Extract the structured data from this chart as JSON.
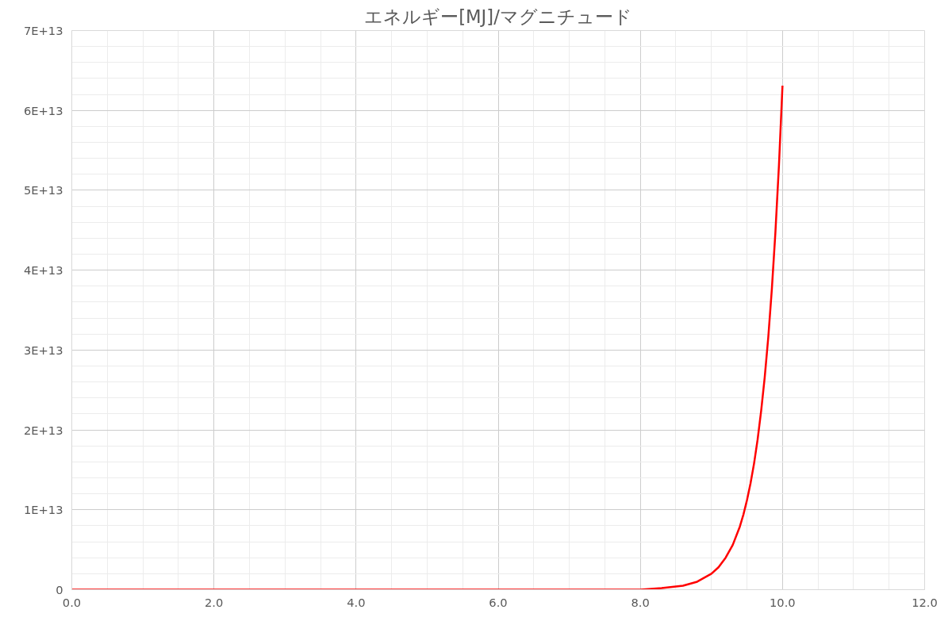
{
  "chart_data": {
    "type": "line",
    "title": "エネルギー[MJ]/マグニチュード",
    "x": [
      0,
      1,
      2,
      3,
      4,
      5,
      6,
      7,
      8,
      8.3,
      8.5,
      8.6,
      8.8,
      9.0,
      9.1,
      9.2,
      9.3,
      9.4,
      9.45,
      9.5,
      9.55,
      9.6,
      9.65,
      9.7,
      9.75,
      9.8,
      9.85,
      9.9,
      9.95,
      10.0
    ],
    "series": [
      {
        "color": "#ff0000",
        "values": [
          0,
          0,
          0,
          0,
          0,
          0,
          0,
          0,
          0,
          200000000000.0,
          400000000000.0,
          500000000000.0,
          1000000000000.0,
          2000000000000.0,
          2800000000000.0,
          4000000000000.0,
          5600000000000.0,
          7900000000000.0,
          9400000000000.0,
          11200000000000.0,
          13300000000000.0,
          15800000000000.0,
          18800000000000.0,
          22400000000000.0,
          26600000000000.0,
          31600000000000.0,
          37600000000000.0,
          44700000000000.0,
          53100000000000.0,
          63100000000000.0
        ]
      }
    ],
    "xlim": [
      0,
      12
    ],
    "xticks": [
      {
        "value": 0,
        "label": "0.0"
      },
      {
        "value": 2,
        "label": "2.0"
      },
      {
        "value": 4,
        "label": "4.0"
      },
      {
        "value": 6,
        "label": "6.0"
      },
      {
        "value": 8,
        "label": "8.0"
      },
      {
        "value": 10,
        "label": "10.0"
      },
      {
        "value": 12,
        "label": "12.0"
      }
    ],
    "ylim": [
      0,
      70000000000000.0
    ],
    "yticks": [
      0,
      {
        "value": 10000000000000.0,
        "label": "1E+13"
      },
      {
        "value": 20000000000000.0,
        "label": "2E+13"
      },
      {
        "value": 30000000000000.0,
        "label": "3E+13"
      },
      {
        "value": 40000000000000.0,
        "label": "4E+13"
      },
      {
        "value": 50000000000000.0,
        "label": "5E+13"
      },
      {
        "value": 60000000000000.0,
        "label": "6E+13"
      },
      {
        "value": 70000000000000.0,
        "label": "7E+13"
      }
    ],
    "grid": true,
    "marker": "none",
    "line_style": "solid"
  }
}
